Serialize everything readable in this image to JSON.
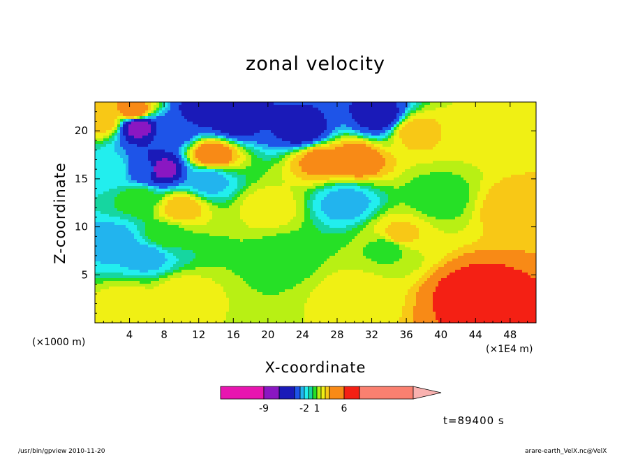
{
  "chart_data": {
    "type": "heatmap",
    "title": "zonal velocity",
    "xlabel": "X-coordinate",
    "ylabel": "Z-coordinate",
    "x_unit_left": "(×1000 m)",
    "x_unit_right": "(×1E4 m)",
    "xlim": [
      0,
      51
    ],
    "ylim": [
      0,
      23
    ],
    "x_ticks": [
      "4",
      "8",
      "12",
      "16",
      "20",
      "24",
      "28",
      "32",
      "36",
      "40",
      "44",
      "48"
    ],
    "x_tick_values": [
      4,
      8,
      12,
      16,
      20,
      24,
      28,
      32,
      36,
      40,
      44,
      48
    ],
    "y_ticks": [
      "5",
      "10",
      "15",
      "20"
    ],
    "y_tick_values": [
      5,
      10,
      15,
      20
    ],
    "colorbar": {
      "boundaries": [
        -14,
        -9,
        -7,
        -5,
        -3,
        -2,
        -1,
        0,
        1,
        2,
        3,
        4,
        6,
        8,
        14
      ],
      "colors": [
        "#e815b0",
        "#8a17c2",
        "#1a1ab8",
        "#1e54e8",
        "#22b4ee",
        "#22eeee",
        "#16d6a0",
        "#26e026",
        "#b8f014",
        "#f0f014",
        "#f8c816",
        "#f88a16",
        "#f42014",
        "#fa8070"
      ],
      "labels": [
        "-9",
        "-2",
        "1",
        "6"
      ],
      "label_values": [
        -9,
        -2,
        1,
        6
      ],
      "extend": "max"
    },
    "field_features": [
      {
        "x": 20,
        "z": 12,
        "value": 2.5
      },
      {
        "x": 4,
        "z": 2,
        "value": 2.5
      },
      {
        "x": 10,
        "z": 3,
        "value": 2.5
      },
      {
        "x": 30,
        "z": 3,
        "value": 2.5
      },
      {
        "x": 44,
        "z": 20,
        "value": 2.5
      },
      {
        "x": 22,
        "z": 7,
        "value": 0.5
      },
      {
        "x": 34,
        "z": 8,
        "value": 0.5
      },
      {
        "x": 8,
        "z": 9,
        "value": 0.5
      },
      {
        "x": 5,
        "z": 13,
        "value": 0.5
      },
      {
        "x": 40,
        "z": 13,
        "value": 0.5
      },
      {
        "x": 2,
        "z": 16,
        "value": -1.5
      },
      {
        "x": 13,
        "z": 14.8,
        "value": -2.5
      },
      {
        "x": 29,
        "z": 12.5,
        "value": -2.5
      },
      {
        "x": 2.5,
        "z": 8.5,
        "value": -2.5
      },
      {
        "x": 6,
        "z": 7,
        "value": -2.5
      },
      {
        "x": 6,
        "z": 16,
        "value": -4
      },
      {
        "x": 9,
        "z": 20,
        "value": -4
      },
      {
        "x": 12.5,
        "z": 22,
        "value": -6
      },
      {
        "x": 16,
        "z": 21,
        "value": -6
      },
      {
        "x": 24,
        "z": 20,
        "value": -6
      },
      {
        "x": 33,
        "z": 21.5,
        "value": -6
      },
      {
        "x": 7.5,
        "z": 16,
        "value": -8
      },
      {
        "x": 5,
        "z": 20.5,
        "value": -8
      },
      {
        "x": 13.5,
        "z": 17.5,
        "value": 5
      },
      {
        "x": 26,
        "z": 17,
        "value": 4.5
      },
      {
        "x": 30,
        "z": 17,
        "value": 5
      },
      {
        "x": 10,
        "z": 12,
        "value": 3.5
      },
      {
        "x": 37,
        "z": 20,
        "value": 3.5
      },
      {
        "x": 1,
        "z": 21,
        "value": 3.5
      },
      {
        "x": 4.5,
        "z": 22,
        "value": 5
      },
      {
        "x": 35,
        "z": 9,
        "value": 3.5
      },
      {
        "x": 48,
        "z": 12,
        "value": 3.5
      },
      {
        "x": 44,
        "z": 3,
        "value": 7
      }
    ]
  },
  "timestamp": "t=89400 s",
  "footer_left": "/usr/bin/gpview  2010-11-20",
  "footer_right": "arare-earth_VelX.nc@VelX"
}
